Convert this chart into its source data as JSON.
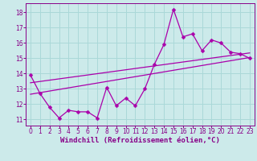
{
  "xlabel": "Windchill (Refroidissement éolien,°C)",
  "background_color": "#cceaea",
  "grid_color": "#aad8d8",
  "line_color": "#aa00aa",
  "xlim": [
    -0.5,
    23.5
  ],
  "ylim": [
    10.6,
    18.6
  ],
  "xticks": [
    0,
    1,
    2,
    3,
    4,
    5,
    6,
    7,
    8,
    9,
    10,
    11,
    12,
    13,
    14,
    15,
    16,
    17,
    18,
    19,
    20,
    21,
    22,
    23
  ],
  "yticks": [
    11,
    12,
    13,
    14,
    15,
    16,
    17,
    18
  ],
  "line1_x": [
    0,
    1,
    2,
    3,
    4,
    5,
    6,
    7,
    8,
    9,
    10,
    11,
    12,
    13,
    14,
    15,
    16,
    17,
    18,
    19,
    20,
    21,
    22,
    23
  ],
  "line1_y": [
    13.9,
    12.7,
    11.8,
    11.1,
    11.6,
    11.5,
    11.5,
    11.1,
    13.1,
    11.9,
    12.4,
    11.9,
    13.0,
    14.6,
    15.9,
    18.2,
    16.4,
    16.6,
    15.5,
    16.2,
    16.0,
    15.4,
    15.3,
    15.0
  ],
  "trend1_x": [
    0,
    23
  ],
  "trend1_y": [
    12.65,
    15.05
  ],
  "trend2_x": [
    0,
    23
  ],
  "trend2_y": [
    13.4,
    15.35
  ],
  "font_color": "#880088",
  "tick_fontsize": 5.5,
  "label_fontsize": 6.5,
  "marker_size": 2.5,
  "linewidth": 0.9
}
